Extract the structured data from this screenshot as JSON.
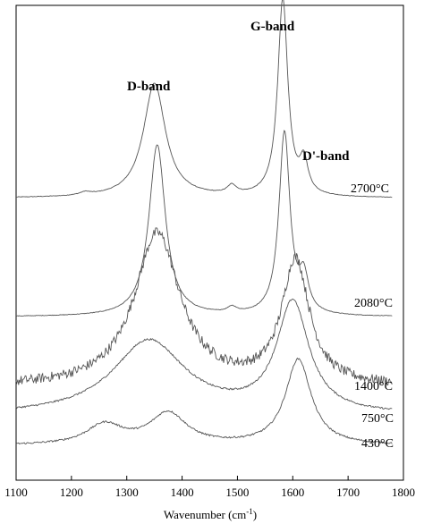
{
  "chart_data": {
    "type": "line",
    "xlabel": "Wavenumber (cm",
    "xlabel_sup": "-1",
    "xlabel_close": ")",
    "xlim": [
      1100,
      1800
    ],
    "xticks": [
      1100,
      1200,
      1300,
      1400,
      1500,
      1600,
      1700,
      1800
    ],
    "y_axis_ticks": false,
    "grid": false,
    "series": [
      {
        "name": "2700°C",
        "baseline": 0.94,
        "noise": 0.002,
        "peaks": [
          {
            "center": 1350,
            "height": 0.8,
            "width": 24
          },
          {
            "center": 1490,
            "height": 0.06,
            "width": 10
          },
          {
            "center": 1582,
            "height": 1.38,
            "width": 11
          },
          {
            "center": 1620,
            "height": 0.22,
            "width": 9
          },
          {
            "center": 1225,
            "height": 0.02,
            "width": 12
          }
        ]
      },
      {
        "name": "2080°C",
        "baseline": 0.11,
        "noise": 0.002,
        "peaks": [
          {
            "center": 1355,
            "height": 1.2,
            "width": 18
          },
          {
            "center": 1490,
            "height": 0.04,
            "width": 10
          },
          {
            "center": 1585,
            "height": 1.28,
            "width": 12
          },
          {
            "center": 1620,
            "height": 0.24,
            "width": 10
          }
        ]
      },
      {
        "name": "1400°C",
        "baseline": -0.38,
        "noise": 0.035,
        "peaks": [
          {
            "center": 1355,
            "height": 1.07,
            "width": 50
          },
          {
            "center": 1605,
            "height": 0.87,
            "width": 30
          }
        ]
      },
      {
        "name": "750°C",
        "baseline": -0.58,
        "noise": 0.006,
        "peaks": [
          {
            "center": 1340,
            "height": 0.52,
            "width": 80
          },
          {
            "center": 1600,
            "height": 0.77,
            "width": 35
          }
        ]
      },
      {
        "name": "430°C",
        "baseline": -0.79,
        "noise": 0.006,
        "peaks": [
          {
            "center": 1260,
            "height": 0.14,
            "width": 40
          },
          {
            "center": 1375,
            "height": 0.22,
            "width": 40
          },
          {
            "center": 1610,
            "height": 0.6,
            "width": 28
          }
        ]
      }
    ],
    "annotations": [
      "D-band",
      "G-band",
      "D'-band"
    ]
  }
}
